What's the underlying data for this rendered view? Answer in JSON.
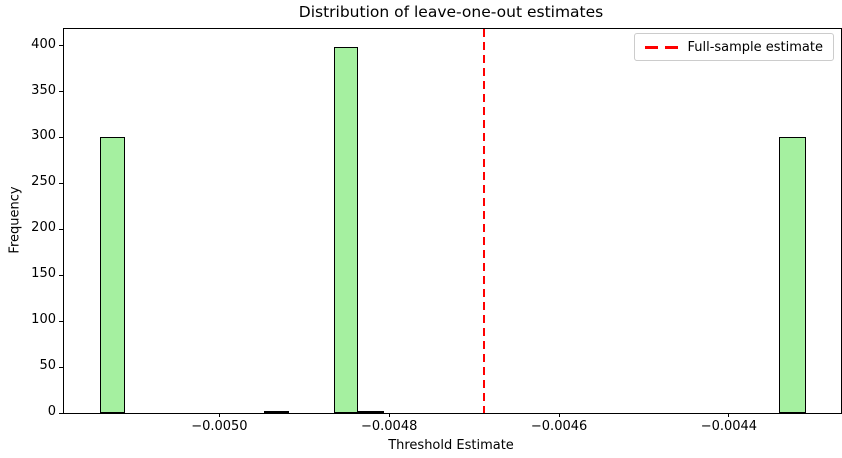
{
  "title": "Distribution of leave-one-out estimates",
  "axes": {
    "xlabel": "Threshold Estimate",
    "ylabel": "Frequency"
  },
  "legend": {
    "label": "Full-sample estimate",
    "line_color": "#ff0000",
    "line_style": "dashed",
    "position": "upper right"
  },
  "colors": {
    "bar_fill": "#a5f0a0",
    "bar_edge": "#000000",
    "vline": "#ff0000",
    "spine": "#000000",
    "background": "#ffffff"
  },
  "chart_data": {
    "type": "bar",
    "subtype": "histogram",
    "title": "Distribution of leave-one-out estimates",
    "xlabel": "Threshold Estimate",
    "ylabel": "Frequency",
    "xlim": [
      -0.005183,
      -0.004268
    ],
    "ylim": [
      0,
      418
    ],
    "grid": false,
    "legend_position": "upper right",
    "xticks": [
      {
        "value": -0.005,
        "label": "−0.0050"
      },
      {
        "value": -0.0048,
        "label": "−0.0048"
      },
      {
        "value": -0.0046,
        "label": "−0.0046"
      },
      {
        "value": -0.0044,
        "label": "−0.0044"
      }
    ],
    "yticks": [
      {
        "value": 0,
        "label": "0"
      },
      {
        "value": 50,
        "label": "50"
      },
      {
        "value": 100,
        "label": "100"
      },
      {
        "value": 150,
        "label": "150"
      },
      {
        "value": 200,
        "label": "200"
      },
      {
        "value": 250,
        "label": "250"
      },
      {
        "value": 300,
        "label": "300"
      },
      {
        "value": 350,
        "label": "350"
      },
      {
        "value": 400,
        "label": "400"
      }
    ],
    "bars": [
      {
        "left": -0.0051412,
        "right": -0.0051118,
        "frequency": 300
      },
      {
        "left": -0.0049471,
        "right": -0.0049176,
        "frequency": 1
      },
      {
        "left": -0.0048647,
        "right": -0.0048365,
        "frequency": 398
      },
      {
        "left": -0.0048365,
        "right": -0.0048059,
        "frequency": 1
      },
      {
        "left": -0.0043412,
        "right": -0.0043094,
        "frequency": 300
      }
    ],
    "vline": {
      "x": -0.004688,
      "color": "#ff0000",
      "style": "dashed",
      "label": "Full-sample estimate"
    }
  }
}
